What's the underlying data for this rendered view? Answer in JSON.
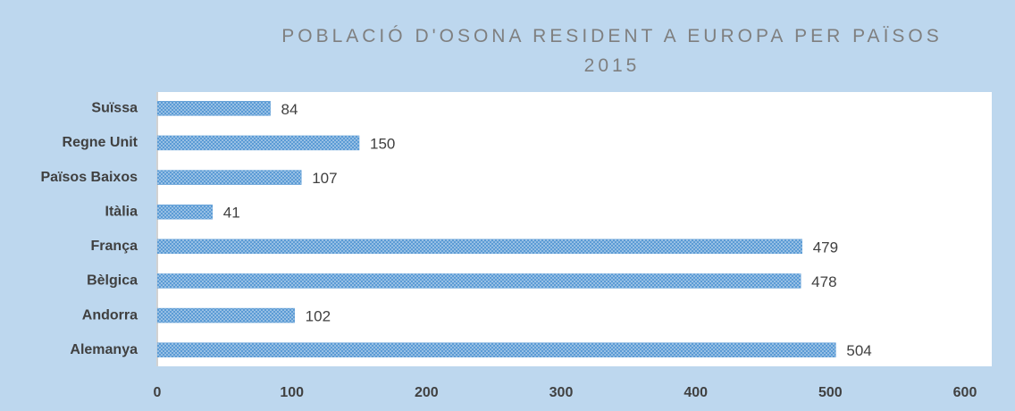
{
  "chart_data": {
    "type": "bar",
    "orientation": "horizontal",
    "title": "POBLACIÓ D'OSONA RESIDENT A EUROPA PER PAÏSOS\n2015",
    "categories": [
      "Alemanya",
      "Andorra",
      "Bèlgica",
      "França",
      "Itàlia",
      "Països Baixos",
      "Regne Unit",
      "Suïssa"
    ],
    "values": [
      504,
      102,
      478,
      479,
      41,
      107,
      150,
      84
    ],
    "color": "#5b9bd5",
    "xlim": [
      0,
      600
    ],
    "xticks": [
      0,
      100,
      200,
      300,
      400,
      500,
      600
    ],
    "grid": false
  }
}
